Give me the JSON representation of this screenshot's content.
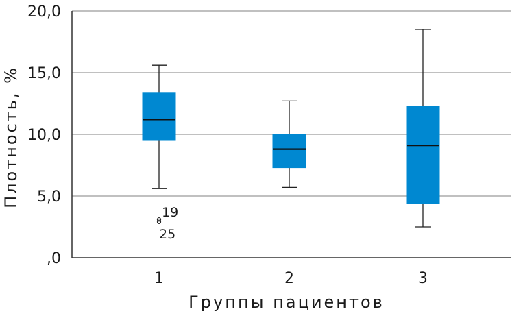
{
  "chart_data": {
    "type": "boxplot",
    "xlabel": "Группы пациентов",
    "ylabel": "Плотность, %",
    "ylim": [
      0,
      20
    ],
    "yticks": [
      {
        "value": 0,
        "label": ",0"
      },
      {
        "value": 5,
        "label": "5,0"
      },
      {
        "value": 10,
        "label": "10,0"
      },
      {
        "value": 15,
        "label": "15,0"
      },
      {
        "value": 20,
        "label": "20,0"
      }
    ],
    "grid": true,
    "box_color": "#0088d1",
    "median_color": "#111111",
    "groups": [
      {
        "label": "1",
        "whisker_low": 5.6,
        "q1": 9.5,
        "median": 11.2,
        "q3": 13.4,
        "whisker_high": 15.6,
        "outliers": [
          {
            "value": 3.1,
            "label": "19"
          },
          {
            "value": 2.9,
            "label": "25"
          }
        ]
      },
      {
        "label": "2",
        "whisker_low": 5.7,
        "q1": 7.3,
        "median": 8.8,
        "q3": 10.0,
        "whisker_high": 12.7,
        "outliers": []
      },
      {
        "label": "3",
        "whisker_low": 2.5,
        "q1": 4.4,
        "median": 9.1,
        "q3": 12.3,
        "whisker_high": 18.5,
        "outliers": []
      }
    ]
  }
}
